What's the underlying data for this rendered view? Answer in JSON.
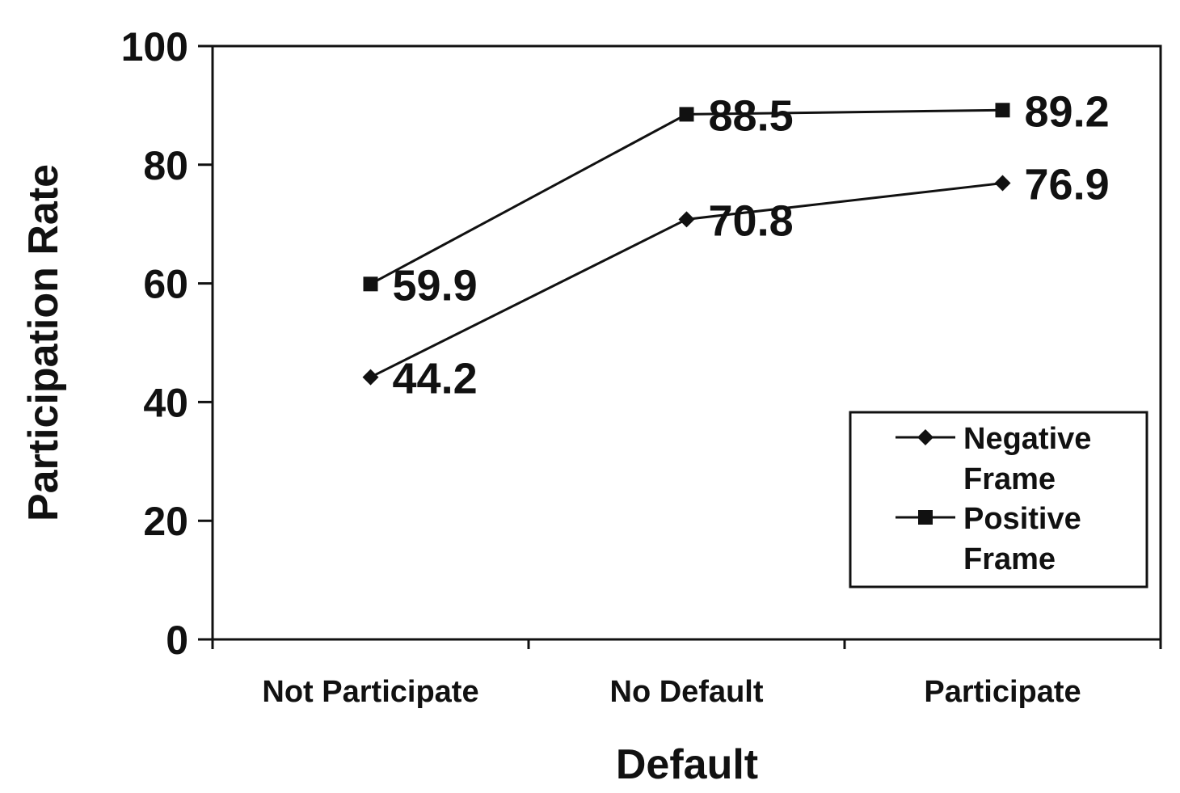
{
  "chart_data": {
    "type": "line",
    "xlabel": "Default",
    "ylabel": "Participation Rate",
    "categories": [
      "Not Participate",
      "No Default",
      "Participate"
    ],
    "ylim": [
      0,
      100
    ],
    "yticks": [
      0,
      20,
      40,
      60,
      80,
      100
    ],
    "grid": false,
    "legend_position": "bottom-right",
    "series": [
      {
        "name": "Negative Frame",
        "legend_lines": [
          "Negative",
          "Frame"
        ],
        "marker": "diamond",
        "values": [
          44.2,
          70.8,
          76.9
        ],
        "labels": [
          "44.2",
          "70.8",
          "76.9"
        ]
      },
      {
        "name": "Positive Frame",
        "legend_lines": [
          "Positive",
          "Frame"
        ],
        "marker": "square",
        "values": [
          59.9,
          88.5,
          89.2
        ],
        "labels": [
          "59.9",
          "88.5",
          "89.2"
        ]
      }
    ],
    "colors": {
      "line": "#111111",
      "axis": "#111111"
    }
  }
}
